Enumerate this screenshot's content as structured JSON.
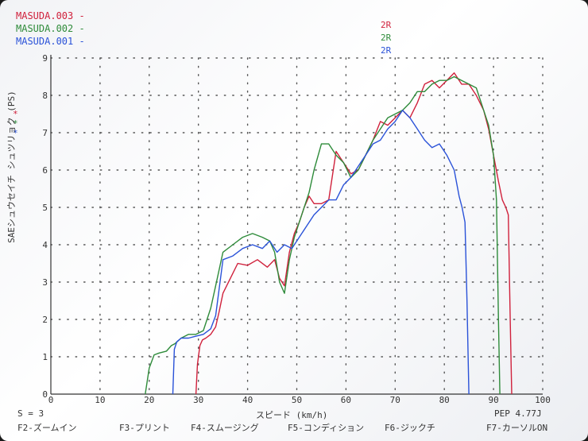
{
  "legend": [
    {
      "name": "MASUDA.003",
      "tag": "2R",
      "color": "#d0213c"
    },
    {
      "name": "MASUDA.002",
      "tag": "2R",
      "color": "#2e8b3a"
    },
    {
      "name": "MASUDA.001",
      "tag": "2R",
      "color": "#2a52d8"
    }
  ],
  "legend_dash": "-",
  "markers": [
    "*",
    "*",
    "*"
  ],
  "footer": {
    "smoothing": "S = 3",
    "pep": "PEP  4.77J",
    "function_keys": [
      "F2-ズームイン",
      "F3-プリント",
      "F4-スムージング",
      "F5-コンディション",
      "F6-ジックチ",
      "F7-カーソルON"
    ]
  },
  "chart_data": {
    "type": "line",
    "title": "",
    "xlabel": "スピード (km/h)",
    "ylabel": "SAEシュウセイチ シュツリョク (PS)",
    "xlim": [
      0,
      100
    ],
    "ylim": [
      0,
      9
    ],
    "x_ticks": [
      0,
      10,
      20,
      30,
      40,
      50,
      60,
      70,
      80,
      90,
      100
    ],
    "y_ticks": [
      0,
      1,
      2,
      3,
      4,
      5,
      6,
      7,
      8,
      9
    ],
    "grid": true,
    "legend_position": "top-left",
    "series": [
      {
        "name": "MASUDA.003",
        "color": "#d0213c",
        "x": [
          29.5,
          29.8,
          30.3,
          30.8,
          31.5,
          32.5,
          33.5,
          34.2,
          35,
          36.5,
          38,
          40,
          42,
          44,
          45.5,
          46.5,
          47.5,
          48.5,
          49.5,
          50.5,
          51.5,
          52.5,
          53.5,
          55,
          56.5,
          58,
          59.5,
          61,
          62.5,
          64,
          65.5,
          67,
          68.5,
          70,
          71.5,
          73,
          74.5,
          76,
          77.5,
          79,
          80.5,
          82,
          83.5,
          85,
          86.5,
          88,
          89,
          90,
          91,
          91.8,
          92.5,
          93,
          93.4,
          93.7
        ],
        "y": [
          0,
          0.8,
          1.3,
          1.45,
          1.5,
          1.6,
          1.8,
          2.2,
          2.7,
          3.1,
          3.5,
          3.45,
          3.6,
          3.4,
          3.6,
          3.1,
          2.9,
          3.8,
          4.3,
          4.6,
          5.0,
          5.3,
          5.1,
          5.1,
          5.2,
          6.5,
          6.2,
          5.9,
          6.0,
          6.4,
          6.8,
          7.3,
          7.2,
          7.4,
          7.6,
          7.4,
          7.8,
          8.3,
          8.4,
          8.2,
          8.4,
          8.6,
          8.3,
          8.3,
          8.0,
          7.6,
          7.1,
          6.4,
          5.7,
          5.2,
          5.0,
          4.8,
          2.0,
          0
        ]
      },
      {
        "name": "MASUDA.002",
        "color": "#2e8b3a",
        "x": [
          19.2,
          20,
          21,
          22,
          23.5,
          24.5,
          25.2,
          26.5,
          28,
          29.5,
          31,
          32.5,
          33.5,
          35,
          37,
          39,
          41,
          43,
          44.5,
          45.5,
          46.5,
          47.5,
          48.5,
          49.5,
          50.5,
          51.5,
          52.5,
          53.5,
          55,
          56.5,
          58,
          59.5,
          61,
          62.5,
          64,
          65.5,
          67,
          68.5,
          70,
          71.5,
          73,
          74.5,
          76,
          77.5,
          79,
          80.5,
          82,
          83.5,
          85,
          86.5,
          88,
          89,
          90,
          90.6,
          91,
          91.3
        ],
        "y": [
          0,
          0.7,
          1.05,
          1.1,
          1.15,
          1.3,
          1.35,
          1.5,
          1.6,
          1.6,
          1.7,
          2.3,
          2.9,
          3.8,
          4.0,
          4.2,
          4.3,
          4.2,
          4.1,
          3.8,
          3.0,
          2.7,
          3.6,
          4.2,
          4.6,
          5.0,
          5.4,
          6.0,
          6.7,
          6.7,
          6.4,
          6.2,
          5.8,
          6.0,
          6.4,
          6.8,
          7.1,
          7.4,
          7.5,
          7.6,
          7.8,
          8.1,
          8.1,
          8.3,
          8.4,
          8.4,
          8.5,
          8.4,
          8.3,
          8.2,
          7.6,
          7.2,
          6.4,
          5.2,
          2.0,
          0
        ]
      },
      {
        "name": "MASUDA.001",
        "color": "#2a52d8",
        "x": [
          24.8,
          25.1,
          25.6,
          26.5,
          28,
          29.5,
          31,
          32.5,
          33.5,
          35,
          37,
          39,
          41,
          43,
          44.5,
          46,
          47.5,
          49,
          50.5,
          52,
          53.5,
          55,
          56.5,
          58,
          59.5,
          61,
          62.5,
          64,
          65.5,
          67,
          68.5,
          70,
          71.5,
          73,
          74.5,
          76,
          77.5,
          79,
          80.5,
          82,
          83,
          83.6,
          84.2,
          84.6,
          85
        ],
        "y": [
          0,
          1.2,
          1.4,
          1.5,
          1.5,
          1.55,
          1.6,
          1.75,
          2.1,
          3.6,
          3.7,
          3.9,
          4.0,
          3.9,
          4.1,
          3.8,
          4.0,
          3.9,
          4.2,
          4.5,
          4.8,
          5.0,
          5.2,
          5.2,
          5.6,
          5.8,
          6.1,
          6.4,
          6.7,
          6.8,
          7.1,
          7.3,
          7.6,
          7.4,
          7.1,
          6.8,
          6.6,
          6.7,
          6.4,
          6.0,
          5.3,
          5.0,
          4.6,
          2.5,
          0
        ]
      }
    ]
  }
}
